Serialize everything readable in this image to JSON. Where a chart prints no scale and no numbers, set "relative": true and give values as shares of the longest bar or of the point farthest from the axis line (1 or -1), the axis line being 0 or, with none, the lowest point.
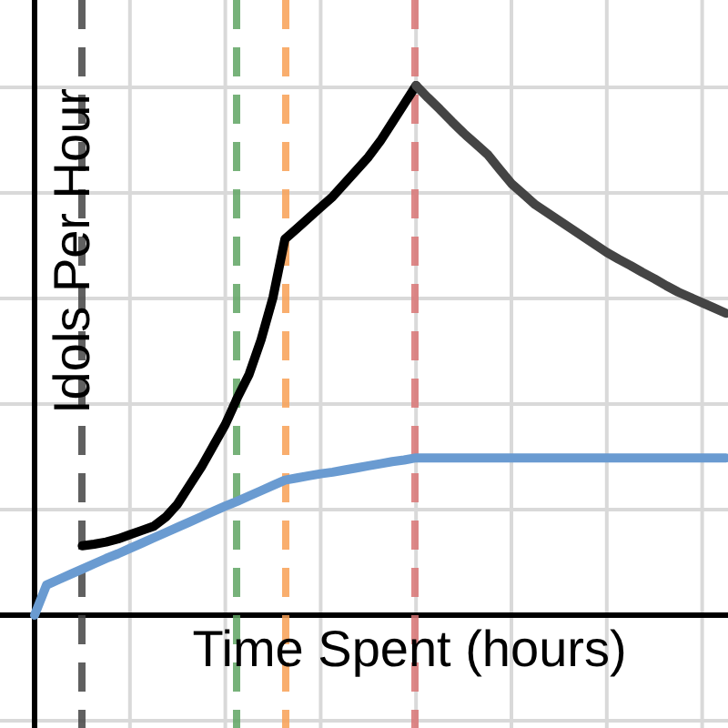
{
  "chart_data": {
    "type": "line",
    "xlabel": "Time Spent (hours)",
    "ylabel": "Idols Per Hour",
    "relative": true,
    "grid": true,
    "marker": "none",
    "line_style": "solid",
    "categories": [
      null,
      null,
      null,
      null,
      null,
      null,
      null,
      null,
      null,
      null,
      null,
      null,
      null,
      null,
      null,
      null,
      null,
      null,
      null,
      null,
      null,
      null,
      null,
      null,
      null,
      null,
      null,
      null,
      null,
      null,
      null,
      null,
      null,
      null,
      null,
      null,
      null,
      null,
      null,
      null,
      null,
      null,
      null,
      null,
      null,
      null,
      null,
      null,
      null,
      null,
      null,
      null,
      null,
      null,
      null,
      null,
      null,
      null,
      null
    ],
    "series": [
      {
        "color": "#000000",
        "values": [
          null,
          null,
          null,
          null,
          0.131,
          0.134,
          0.138,
          0.144,
          0.152,
          0.16,
          0.168,
          0.185,
          0.21,
          0.245,
          0.28,
          0.32,
          0.36,
          0.41,
          0.455,
          0.52,
          0.6,
          0.71,
          0.73,
          0.75,
          0.77,
          0.79,
          0.815,
          0.84,
          0.865,
          0.895,
          0.93,
          0.965,
          1,
          null,
          null,
          null,
          null,
          null,
          null,
          null,
          null,
          null,
          null,
          null,
          null,
          null,
          null,
          null,
          null,
          null,
          null,
          null,
          null,
          null,
          null,
          null,
          null,
          null,
          null
        ]
      },
      {
        "color": "#444444",
        "values": [
          null,
          null,
          null,
          null,
          null,
          null,
          null,
          null,
          null,
          null,
          null,
          null,
          null,
          null,
          null,
          null,
          null,
          null,
          null,
          null,
          null,
          null,
          null,
          null,
          null,
          null,
          null,
          null,
          null,
          null,
          null,
          null,
          1,
          0.977,
          0.955,
          0.932,
          0.91,
          0.89,
          0.87,
          0.842,
          0.815,
          0.795,
          0.775,
          0.76,
          0.745,
          0.73,
          0.715,
          0.7,
          0.685,
          0.672,
          0.66,
          0.647,
          0.635,
          0.622,
          0.61,
          0.6,
          0.59,
          0.58,
          0.57
        ]
      },
      {
        "color": "#6a9bd1",
        "values": [
          0,
          0.057,
          0.067,
          0.077,
          0.087,
          0.097,
          0.107,
          0.116,
          0.126,
          0.136,
          0.146,
          0.156,
          0.166,
          0.176,
          0.186,
          0.196,
          0.206,
          0.215,
          0.225,
          0.235,
          0.245,
          0.255,
          0.259,
          0.263,
          0.267,
          0.27,
          0.274,
          0.278,
          0.282,
          0.286,
          0.29,
          0.293,
          0.297,
          0.297,
          0.297,
          0.297,
          0.297,
          0.297,
          0.297,
          0.297,
          0.297,
          0.297,
          0.297,
          0.297,
          0.297,
          0.297,
          0.297,
          0.297,
          0.297,
          0.297,
          0.297,
          0.297,
          0.297,
          0.297,
          0.297,
          0.297,
          0.297,
          0.297,
          0.297
        ]
      }
    ]
  }
}
